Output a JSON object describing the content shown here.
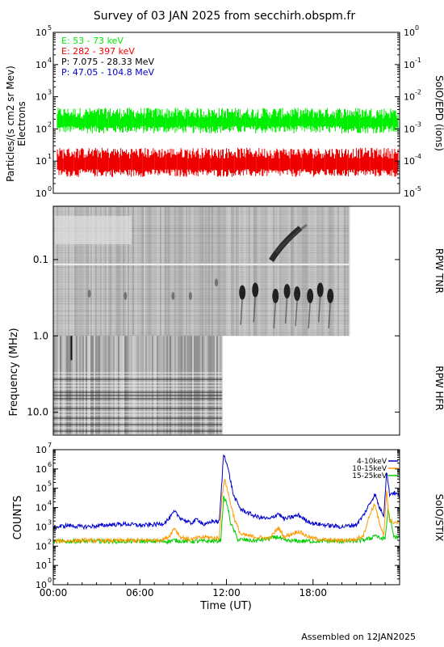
{
  "title": "Survey of 03 JAN 2025 from secchirh.obspm.fr",
  "footer": "Assembled on  12JAN2025",
  "chart_data": [
    {
      "type": "line",
      "panel": "SoIO/EPD",
      "ylabel_left": "Particles/(s cm2 sr Mev)",
      "ylabel_left2": "Electrons",
      "ylabel_right": "SoIO/EPD (ions)",
      "yscale": "log",
      "ylim": [
        1,
        100000
      ],
      "yticks": [
        "10",
        "10",
        "10",
        "10",
        "10",
        "10"
      ],
      "yticks_exp": [
        "0",
        "1",
        "2",
        "3",
        "4",
        "5"
      ],
      "yticks_right_exp": [
        "-5",
        "-4",
        "-3",
        "-2",
        "-1",
        "0"
      ],
      "legend": [
        {
          "label": "E: 53 - 73 keV",
          "color": "#00ee00"
        },
        {
          "label": "E: 282 - 397 keV",
          "color": "#ee0000"
        },
        {
          "label": "P: 7.075 - 28.33 MeV",
          "color": "#000000"
        },
        {
          "label": "P: 47.05 - 104.8 MeV",
          "color": "#0000cc"
        }
      ],
      "series": [
        {
          "name": "E: 53 - 73 keV",
          "color": "#00ee00",
          "level": 200,
          "low": 90,
          "high": 350
        },
        {
          "name": "E: 282 - 397 keV",
          "color": "#ee0000",
          "level": 8,
          "low": 4,
          "high": 20
        }
      ]
    },
    {
      "type": "heatmap",
      "panel": "RPW",
      "ylabel": "Frequency (MHz)",
      "yscale": "log",
      "ylim": [
        0.02,
        20
      ],
      "yticks": [
        "0.1",
        "1.0",
        "10.0"
      ],
      "label_upper": "RPW TNR",
      "label_lower": "RPW HFR",
      "tnr_end_hour": 20.5,
      "hfr_end_hour": 11.7,
      "bursts": [
        {
          "hour": 11.3,
          "f": 0.2
        },
        {
          "hour": 13.1,
          "f": 0.27
        },
        {
          "hour": 14.0,
          "f": 0.25
        },
        {
          "hour": 15.4,
          "f": 0.3
        },
        {
          "hour": 16.2,
          "f": 0.26
        },
        {
          "hour": 16.9,
          "f": 0.28
        },
        {
          "hour": 17.8,
          "f": 0.3
        },
        {
          "hour": 18.5,
          "f": 0.25
        },
        {
          "hour": 19.2,
          "f": 0.3
        },
        {
          "hour": 5.0,
          "f": 0.3
        },
        {
          "hour": 8.3,
          "f": 0.3
        },
        {
          "hour": 2.5,
          "f": 0.28
        },
        {
          "hour": 9.5,
          "f": 0.3
        }
      ]
    },
    {
      "type": "line",
      "panel": "SoIO/STIX",
      "ylabel": "COUNTS",
      "ylabel_right": "SoIO/STIX",
      "xlabel": "Time (UT)",
      "xticks": [
        "00:00",
        "06:00",
        "12:00",
        "18:00"
      ],
      "xlim": [
        0,
        24
      ],
      "yscale": "log",
      "ylim": [
        1,
        10000000
      ],
      "yticks": [
        "10",
        "10",
        "10",
        "10",
        "10",
        "10",
        "10",
        "10"
      ],
      "yticks_exp": [
        "0",
        "1",
        "2",
        "3",
        "4",
        "5",
        "6",
        "7"
      ],
      "legend": [
        {
          "label": "4-10keV",
          "color": "#0000cc"
        },
        {
          "label": "10-15keV",
          "color": "#ff9900"
        },
        {
          "label": "15-25keV",
          "color": "#00cc00"
        }
      ],
      "series": [
        {
          "name": "4-10keV",
          "color": "#0000cc",
          "x": [
            0,
            1,
            2,
            3,
            4,
            5,
            6,
            7,
            7.6,
            8,
            8.4,
            8.8,
            9.5,
            10,
            10.5,
            11,
            11.5,
            11.7,
            11.8,
            12.0,
            12.2,
            12.5,
            13,
            14,
            15,
            15.6,
            16,
            17,
            17.5,
            18,
            19,
            20,
            21,
            21.5,
            22,
            22.3,
            22.6,
            22.9,
            23.1,
            23.3,
            23.6,
            24
          ],
          "y": [
            900,
            1200,
            1000,
            1100,
            1300,
            1400,
            1200,
            1300,
            1500,
            2500,
            6000,
            3000,
            1500,
            2500,
            1200,
            2000,
            1800,
            300000,
            6000000,
            2500000,
            500000,
            40000,
            8000,
            3500,
            2500,
            5000,
            2500,
            4000,
            2200,
            1500,
            1200,
            1000,
            1300,
            4000,
            20000,
            50000,
            10000,
            4000,
            800000,
            50000,
            60000,
            40000
          ]
        },
        {
          "name": "10-15keV",
          "color": "#ff9900",
          "x": [
            0,
            2,
            4,
            6,
            7.5,
            8,
            8.4,
            8.8,
            9.5,
            10.5,
            11.5,
            11.7,
            11.9,
            12.2,
            12.6,
            13,
            14,
            15,
            15.6,
            16,
            17,
            17.5,
            18,
            19,
            20,
            21,
            21.5,
            22,
            22.3,
            22.6,
            22.9,
            23.1,
            23.3,
            24
          ],
          "y": [
            180,
            200,
            190,
            200,
            210,
            300,
            900,
            300,
            220,
            300,
            250,
            50000,
            300000,
            30000,
            2000,
            400,
            300,
            250,
            900,
            300,
            600,
            350,
            250,
            200,
            200,
            220,
            400,
            6000,
            15000,
            1500,
            300,
            80000,
            2000,
            1500
          ]
        },
        {
          "name": "15-25keV",
          "color": "#00cc00",
          "x": [
            0,
            2,
            4,
            6,
            8,
            8.4,
            9,
            11,
            11.6,
            11.8,
            12.0,
            12.3,
            12.8,
            14,
            15.6,
            16,
            18,
            21,
            22,
            22.3,
            22.6,
            23.0,
            23.2,
            23.6,
            24
          ],
          "y": [
            170,
            180,
            175,
            180,
            180,
            200,
            180,
            180,
            200,
            30000,
            20000,
            1500,
            220,
            190,
            300,
            190,
            180,
            180,
            250,
            400,
            250,
            250,
            8000,
            300,
            300
          ]
        }
      ]
    }
  ]
}
